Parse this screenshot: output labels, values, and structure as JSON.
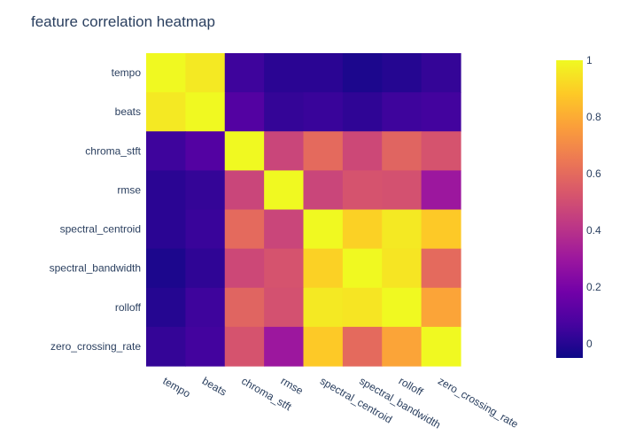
{
  "chart_data": {
    "type": "heatmap",
    "title": "feature correlation heatmap",
    "labels": [
      "tempo",
      "beats",
      "chroma_stft",
      "rmse",
      "spectral_centroid",
      "spectral_bandwidth",
      "rolloff",
      "zero_crossing_rate"
    ],
    "values": [
      [
        1.0,
        0.96,
        0.05,
        0.01,
        0.01,
        -0.02,
        0.0,
        0.03
      ],
      [
        0.96,
        1.0,
        0.1,
        0.03,
        0.04,
        0.02,
        0.05,
        0.06
      ],
      [
        0.05,
        0.1,
        1.0,
        0.47,
        0.6,
        0.48,
        0.58,
        0.52
      ],
      [
        0.01,
        0.03,
        0.47,
        1.0,
        0.47,
        0.52,
        0.51,
        0.3
      ],
      [
        0.01,
        0.04,
        0.6,
        0.47,
        1.0,
        0.9,
        0.96,
        0.88
      ],
      [
        -0.02,
        0.02,
        0.48,
        0.52,
        0.9,
        1.0,
        0.95,
        0.6
      ],
      [
        0.0,
        0.05,
        0.58,
        0.51,
        0.96,
        0.95,
        1.0,
        0.78
      ],
      [
        0.03,
        0.06,
        0.52,
        0.3,
        0.88,
        0.6,
        0.78,
        1.0
      ]
    ],
    "zmin": -0.05,
    "zmax": 1.0,
    "colorscale": [
      "#0d0887",
      "#46039f",
      "#7201a8",
      "#9c179e",
      "#bd3786",
      "#d8576b",
      "#ed7953",
      "#fb9f3a",
      "#fdca26",
      "#f0f921"
    ],
    "colorbar": {
      "ticks": [
        0,
        0.2,
        0.4,
        0.6,
        0.8,
        1
      ],
      "tick_labels": [
        "0",
        "0.2",
        "0.4",
        "0.6",
        "0.8",
        "1"
      ]
    }
  }
}
